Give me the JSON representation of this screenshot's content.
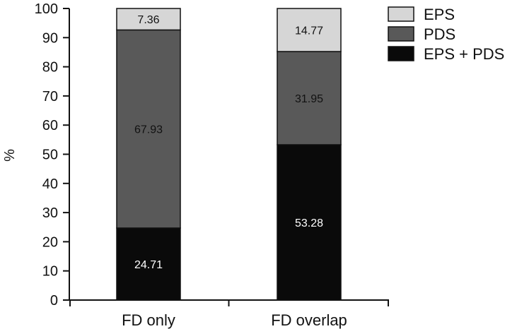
{
  "chart_data": {
    "type": "bar",
    "stacked": true,
    "categories": [
      "FD only",
      "FD overlap"
    ],
    "series": [
      {
        "name": "EPS + PDS",
        "values": [
          24.71,
          53.28
        ],
        "color": "#0a0a0a",
        "label_color": "#ffffff"
      },
      {
        "name": "PDS",
        "values": [
          67.93,
          31.95
        ],
        "color": "#595959",
        "label_color": "#111111"
      },
      {
        "name": "EPS",
        "values": [
          7.36,
          14.77
        ],
        "color": "#d6d6d6",
        "label_color": "#111111"
      }
    ],
    "value_labels": [
      [
        "24.71",
        "53.28"
      ],
      [
        "67.93",
        "31.95"
      ],
      [
        "7.36",
        "14.77"
      ]
    ],
    "legend_order": [
      "EPS",
      "PDS",
      "EPS + PDS"
    ],
    "legend_position": "top-right",
    "ylabel": "%",
    "xlabel": "",
    "ylim": [
      0,
      100
    ],
    "yticks": [
      "0",
      "10",
      "20",
      "30",
      "40",
      "50",
      "60",
      "70",
      "80",
      "90",
      "100"
    ],
    "grid": false
  }
}
